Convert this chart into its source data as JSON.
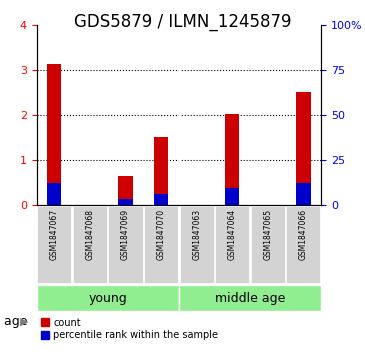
{
  "title": "GDS5879 / ILMN_1245879",
  "samples": [
    "GSM1847067",
    "GSM1847068",
    "GSM1847069",
    "GSM1847070",
    "GSM1847063",
    "GSM1847064",
    "GSM1847065",
    "GSM1847066"
  ],
  "count_values": [
    3.15,
    0.0,
    0.65,
    1.52,
    0.0,
    2.02,
    0.0,
    2.52
  ],
  "percentile_values": [
    12.0,
    0.0,
    3.5,
    6.0,
    0.0,
    9.5,
    0.0,
    12.0
  ],
  "groups": [
    {
      "label": "young",
      "start": 0,
      "end": 4,
      "color": "#90EE90"
    },
    {
      "label": "middle age",
      "start": 4,
      "end": 8,
      "color": "#90EE90"
    }
  ],
  "group_separator": 4,
  "ylim_left": [
    0,
    4
  ],
  "ylim_right": [
    0,
    100
  ],
  "yticks_left": [
    0,
    1,
    2,
    3,
    4
  ],
  "yticks_right": [
    0,
    25,
    50,
    75,
    100
  ],
  "ytick_labels_right": [
    "0",
    "25",
    "50",
    "75",
    "100%"
  ],
  "grid_values": [
    1,
    2,
    3
  ],
  "bar_color_red": "#CC0000",
  "bar_color_blue": "#0000CC",
  "bg_color_samples": "#D3D3D3",
  "bg_color_groups": "#90EE90",
  "age_label": "age",
  "legend_count": "count",
  "legend_percentile": "percentile rank within the sample",
  "bar_width": 0.4,
  "title_fontsize": 12,
  "tick_fontsize": 8,
  "label_fontsize": 9
}
